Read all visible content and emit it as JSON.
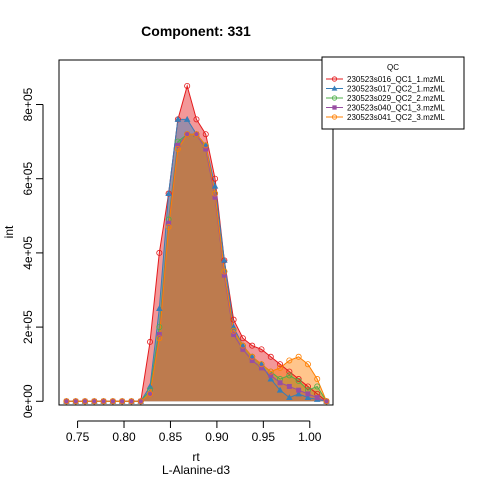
{
  "chart_data": {
    "type": "area",
    "title": "Component: 331",
    "xlabel": "rt",
    "xlabel_sub": "L-Alanine-d3",
    "ylabel": "int",
    "xlim": [
      0.73,
      1.025
    ],
    "ylim": [
      -10000,
      920000
    ],
    "x_ticks": [
      0.75,
      0.8,
      0.85,
      0.9,
      0.95,
      1.0
    ],
    "x_tick_labels": [
      "0.75",
      "0.80",
      "0.85",
      "0.90",
      "0.95",
      "1.00"
    ],
    "y_ticks": [
      0,
      200000,
      400000,
      600000,
      800000
    ],
    "y_tick_labels": [
      "0e+00",
      "2e+05",
      "4e+05",
      "6e+05",
      "8e+05"
    ],
    "legend": {
      "title": "QC",
      "position": "top-right"
    },
    "series": [
      {
        "name": "230523s016_QC1_1.mzML",
        "color": "#E41A1C",
        "marker": "circle",
        "x": [
          0.738,
          0.748,
          0.758,
          0.768,
          0.778,
          0.788,
          0.798,
          0.808,
          0.818,
          0.828,
          0.838,
          0.848,
          0.858,
          0.868,
          0.878,
          0.888,
          0.898,
          0.908,
          0.918,
          0.928,
          0.938,
          0.948,
          0.958,
          0.968,
          0.978,
          0.988,
          0.998,
          1.008,
          1.018
        ],
        "y": [
          0,
          0,
          0,
          0,
          0,
          0,
          0,
          0,
          0,
          160000,
          400000,
          560000,
          760000,
          850000,
          760000,
          720000,
          600000,
          380000,
          220000,
          170000,
          150000,
          140000,
          120000,
          100000,
          80000,
          60000,
          40000,
          20000,
          0
        ]
      },
      {
        "name": "230523s017_QC2_1.mzML",
        "color": "#377EB8",
        "marker": "triangle",
        "x": [
          0.738,
          0.748,
          0.758,
          0.768,
          0.778,
          0.788,
          0.798,
          0.808,
          0.818,
          0.828,
          0.838,
          0.848,
          0.858,
          0.868,
          0.878,
          0.888,
          0.898,
          0.908,
          0.918,
          0.928,
          0.938,
          0.948,
          0.958,
          0.968,
          0.978,
          0.988,
          0.998,
          1.008,
          1.018
        ],
        "y": [
          0,
          0,
          0,
          0,
          0,
          0,
          0,
          0,
          0,
          40000,
          250000,
          560000,
          760000,
          760000,
          720000,
          690000,
          580000,
          380000,
          200000,
          150000,
          120000,
          100000,
          60000,
          30000,
          10000,
          20000,
          10000,
          5000,
          0
        ]
      },
      {
        "name": "230523s029_QC2_2.mzML",
        "color": "#4DAF4A",
        "marker": "circle",
        "x": [
          0.738,
          0.748,
          0.758,
          0.768,
          0.778,
          0.788,
          0.798,
          0.808,
          0.818,
          0.828,
          0.838,
          0.848,
          0.858,
          0.868,
          0.878,
          0.888,
          0.898,
          0.908,
          0.918,
          0.928,
          0.938,
          0.948,
          0.958,
          0.968,
          0.978,
          0.988,
          0.998,
          1.008,
          1.018
        ],
        "y": [
          0,
          0,
          0,
          0,
          0,
          0,
          0,
          0,
          0,
          30000,
          200000,
          490000,
          700000,
          720000,
          720000,
          690000,
          560000,
          350000,
          190000,
          150000,
          120000,
          100000,
          80000,
          60000,
          70000,
          55000,
          30000,
          40000,
          0
        ]
      },
      {
        "name": "230523s040_QC1_3.mzML",
        "color": "#984EA3",
        "marker": "square",
        "x": [
          0.738,
          0.748,
          0.758,
          0.768,
          0.778,
          0.788,
          0.798,
          0.808,
          0.818,
          0.828,
          0.838,
          0.848,
          0.858,
          0.868,
          0.878,
          0.888,
          0.898,
          0.908,
          0.918,
          0.928,
          0.938,
          0.948,
          0.958,
          0.968,
          0.978,
          0.988,
          0.998,
          1.008,
          1.018
        ],
        "y": [
          0,
          0,
          0,
          0,
          0,
          0,
          0,
          0,
          0,
          20000,
          180000,
          480000,
          690000,
          720000,
          720000,
          680000,
          550000,
          340000,
          180000,
          140000,
          110000,
          90000,
          70000,
          50000,
          40000,
          30000,
          20000,
          10000,
          0
        ]
      },
      {
        "name": "230523s041_QC2_3.mzML",
        "color": "#FF7F00",
        "marker": "circle",
        "x": [
          0.738,
          0.748,
          0.758,
          0.768,
          0.778,
          0.788,
          0.798,
          0.808,
          0.818,
          0.828,
          0.838,
          0.848,
          0.858,
          0.868,
          0.878,
          0.888,
          0.898,
          0.908,
          0.918,
          0.928,
          0.938,
          0.948,
          0.958,
          0.968,
          0.978,
          0.988,
          0.998,
          1.008,
          1.018
        ],
        "y": [
          0,
          0,
          0,
          0,
          0,
          0,
          0,
          0,
          0,
          20000,
          170000,
          470000,
          680000,
          720000,
          720000,
          690000,
          560000,
          350000,
          190000,
          150000,
          120000,
          100000,
          80000,
          90000,
          110000,
          120000,
          100000,
          60000,
          0
        ]
      }
    ]
  }
}
